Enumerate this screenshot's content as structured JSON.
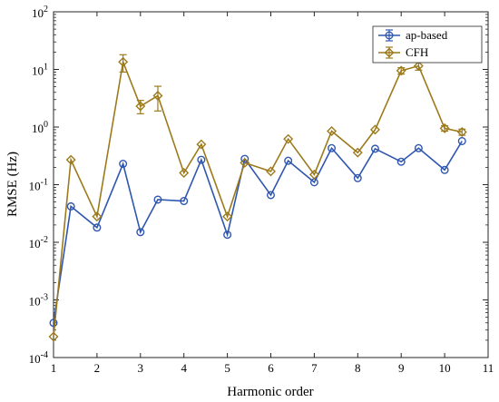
{
  "chart_data": {
    "type": "line",
    "xlabel": "Harmonic order",
    "ylabel": "RMSE (Hz)",
    "xlim": [
      1,
      11
    ],
    "ylim": [
      0.0001,
      100
    ],
    "yscale": "log",
    "grid": false,
    "legend_position": "top-right",
    "x_ticks": [
      "1",
      "2",
      "3",
      "4",
      "5",
      "6",
      "7",
      "8",
      "9",
      "10",
      "11"
    ],
    "y_ticks": [
      {
        "base": "10",
        "exp": "-4"
      },
      {
        "base": "10",
        "exp": "-3"
      },
      {
        "base": "10",
        "exp": "-2"
      },
      {
        "base": "10",
        "exp": "-1"
      },
      {
        "base": "10",
        "exp": "0"
      },
      {
        "base": "10",
        "exp": "1"
      },
      {
        "base": "10",
        "exp": "2"
      }
    ],
    "x": [
      1.0,
      1.4,
      2.0,
      2.6,
      3.0,
      3.4,
      4.0,
      4.4,
      5.0,
      5.4,
      6.0,
      6.4,
      7.0,
      7.4,
      8.0,
      8.4,
      9.0,
      9.4,
      10.0,
      10.4
    ],
    "series": [
      {
        "name": "ap-based",
        "color": "#2f56b0",
        "marker": "circle",
        "values": [
          0.0004,
          0.042,
          0.018,
          0.23,
          0.015,
          0.055,
          0.052,
          0.27,
          0.0135,
          0.28,
          0.066,
          0.26,
          0.11,
          0.43,
          0.13,
          0.42,
          0.25,
          0.43,
          0.18,
          0.57
        ],
        "errors": [
          0,
          0,
          0,
          0,
          0,
          0,
          0,
          0,
          0,
          0,
          0,
          0,
          0,
          0,
          0,
          0,
          0,
          0,
          0,
          0
        ]
      },
      {
        "name": "CFH",
        "color": "#9c7a1c",
        "marker": "diamond",
        "values": [
          0.00023,
          0.27,
          0.028,
          13.5,
          2.3,
          3.5,
          0.16,
          0.5,
          0.028,
          0.24,
          0.17,
          0.62,
          0.15,
          0.85,
          0.36,
          0.9,
          9.5,
          11.5,
          0.95,
          0.82
        ],
        "errors": [
          0,
          0,
          0,
          4.5,
          0.6,
          1.6,
          0,
          0,
          0,
          0,
          0,
          0,
          0,
          0,
          0,
          0,
          1.2,
          1.8,
          0.1,
          0.1
        ]
      }
    ]
  }
}
